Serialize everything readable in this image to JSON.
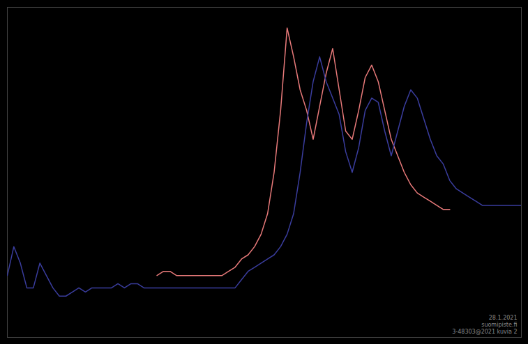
{
  "chart_data": {
    "type": "line",
    "x": [
      0,
      1,
      2,
      3,
      4,
      5,
      6,
      7,
      8,
      9,
      10,
      11,
      12,
      13,
      14,
      15,
      16,
      17,
      18,
      19,
      20,
      21,
      22,
      23,
      24,
      25,
      26,
      27,
      28,
      29,
      30,
      31,
      32,
      33,
      34,
      35,
      36,
      37,
      38,
      39,
      40,
      41,
      42,
      43,
      44,
      45,
      46,
      47,
      48,
      49,
      50,
      51,
      52,
      53,
      54,
      55,
      56,
      57,
      58,
      59,
      60,
      61,
      62,
      63,
      64,
      65,
      66,
      67,
      68,
      69,
      70,
      71,
      72,
      73,
      74,
      75,
      76,
      77,
      78,
      79
    ],
    "series": [
      {
        "color": "#3a3d9e",
        "values": [
          55,
          62,
          58,
          52,
          52,
          58,
          55,
          52,
          50,
          50,
          51,
          52,
          51,
          52,
          52,
          52,
          52,
          53,
          52,
          53,
          53,
          52,
          52,
          52,
          52,
          52,
          52,
          52,
          52,
          52,
          52,
          52,
          52,
          52,
          52,
          52,
          54,
          56,
          57,
          58,
          59,
          60,
          62,
          65,
          70,
          80,
          92,
          102,
          108,
          102,
          98,
          94,
          85,
          80,
          86,
          95,
          98,
          97,
          90,
          84,
          90,
          96,
          100,
          98,
          93,
          88,
          84,
          82,
          78,
          76,
          75,
          74,
          73,
          72,
          72,
          72,
          72,
          72,
          72,
          72
        ]
      },
      {
        "color": "#e87a7a",
        "values": [
          null,
          null,
          null,
          null,
          null,
          null,
          null,
          null,
          null,
          null,
          null,
          null,
          null,
          null,
          null,
          null,
          null,
          null,
          null,
          null,
          null,
          null,
          null,
          55,
          56,
          56,
          55,
          55,
          55,
          55,
          55,
          55,
          55,
          55,
          56,
          57,
          59,
          60,
          62,
          65,
          70,
          80,
          95,
          115,
          108,
          100,
          95,
          88,
          96,
          104,
          110,
          100,
          90,
          88,
          95,
          103,
          106,
          102,
          95,
          88,
          84,
          80,
          77,
          75,
          74,
          73,
          72,
          71,
          71,
          null,
          null,
          null,
          null,
          null,
          null,
          null,
          null,
          null,
          null,
          null
        ]
      }
    ],
    "xlim": [
      0,
      79
    ],
    "ylim": [
      40,
      120
    ],
    "tick_labels": false,
    "grid": false,
    "annotations": [
      "28.1.2021\nsuomipiste.fi\n3-48303@2021 kuvia 2"
    ]
  }
}
